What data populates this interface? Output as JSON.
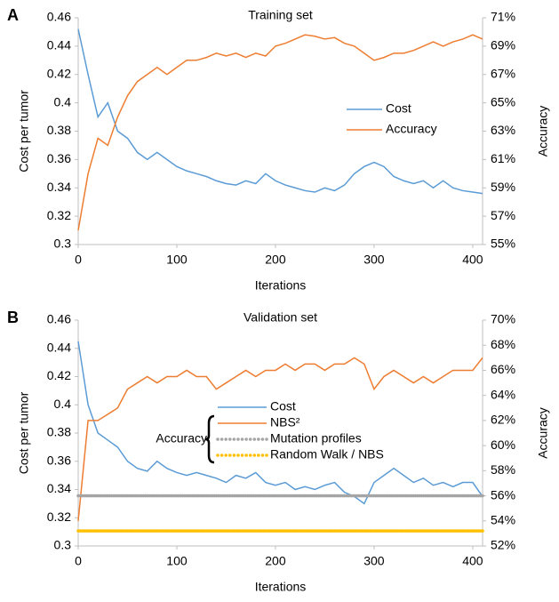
{
  "chart_data": [
    {
      "type": "line",
      "panel_label": "A",
      "title": "Training set",
      "xlabel": "Iterations",
      "ylabel": "Cost per tumor",
      "y2label": "Accuracy",
      "x": [
        0,
        10,
        20,
        30,
        40,
        50,
        60,
        70,
        80,
        90,
        100,
        110,
        120,
        130,
        140,
        150,
        160,
        170,
        180,
        190,
        200,
        210,
        220,
        230,
        240,
        250,
        260,
        270,
        280,
        290,
        300,
        310,
        320,
        330,
        340,
        350,
        360,
        370,
        380,
        390,
        400,
        410
      ],
      "xlim": [
        0,
        410
      ],
      "xticks": [
        0,
        100,
        200,
        300,
        400
      ],
      "ylim": [
        0.3,
        0.46
      ],
      "yticks": [
        0.3,
        0.32,
        0.34,
        0.36,
        0.38,
        0.4,
        0.42,
        0.44,
        0.46
      ],
      "y2lim": [
        55,
        71
      ],
      "y2ticks": [
        {
          "value": 55,
          "label": "55%"
        },
        {
          "value": 57,
          "label": "57%"
        },
        {
          "value": 59,
          "label": "59%"
        },
        {
          "value": 61,
          "label": "61%"
        },
        {
          "value": 63,
          "label": "63%"
        },
        {
          "value": 65,
          "label": "65%"
        },
        {
          "value": 67,
          "label": "67%"
        },
        {
          "value": 69,
          "label": "69%"
        },
        {
          "value": 71,
          "label": "71%"
        }
      ],
      "series": [
        {
          "name": "Cost",
          "color": "#5b9bd5",
          "axis": "y",
          "style": "line",
          "values": [
            0.452,
            0.42,
            0.39,
            0.4,
            0.38,
            0.375,
            0.365,
            0.36,
            0.365,
            0.36,
            0.355,
            0.352,
            0.35,
            0.348,
            0.345,
            0.343,
            0.342,
            0.345,
            0.343,
            0.35,
            0.345,
            0.342,
            0.34,
            0.338,
            0.337,
            0.34,
            0.338,
            0.342,
            0.35,
            0.355,
            0.358,
            0.355,
            0.348,
            0.345,
            0.343,
            0.345,
            0.34,
            0.345,
            0.34,
            0.338,
            0.337,
            0.336
          ]
        },
        {
          "name": "Accuracy",
          "color": "#ed7d31",
          "axis": "y2",
          "style": "line",
          "values": [
            56,
            60,
            62.5,
            62,
            64,
            65.5,
            66.5,
            67,
            67.5,
            67,
            67.5,
            68,
            68,
            68.2,
            68.5,
            68.3,
            68.5,
            68.2,
            68.5,
            68.3,
            69,
            69.2,
            69.5,
            69.8,
            69.7,
            69.5,
            69.6,
            69.2,
            69,
            68.5,
            68,
            68.2,
            68.5,
            68.5,
            68.7,
            69,
            69.3,
            69,
            69.3,
            69.5,
            69.8,
            69.5
          ]
        }
      ]
    },
    {
      "type": "line",
      "panel_label": "B",
      "title": "Validation set",
      "xlabel": "Iterations",
      "ylabel": "Cost per tumor",
      "y2label": "Accuracy",
      "annotation": "Accuracy",
      "x": [
        0,
        10,
        20,
        30,
        40,
        50,
        60,
        70,
        80,
        90,
        100,
        110,
        120,
        130,
        140,
        150,
        160,
        170,
        180,
        190,
        200,
        210,
        220,
        230,
        240,
        250,
        260,
        270,
        280,
        290,
        300,
        310,
        320,
        330,
        340,
        350,
        360,
        370,
        380,
        390,
        400,
        410
      ],
      "xlim": [
        0,
        410
      ],
      "xticks": [
        0,
        100,
        200,
        300,
        400
      ],
      "ylim": [
        0.3,
        0.46
      ],
      "yticks": [
        0.3,
        0.32,
        0.34,
        0.36,
        0.38,
        0.4,
        0.42,
        0.44,
        0.46
      ],
      "y2lim": [
        52,
        70
      ],
      "y2ticks": [
        {
          "value": 52,
          "label": "52%"
        },
        {
          "value": 54,
          "label": "54%"
        },
        {
          "value": 56,
          "label": "56%"
        },
        {
          "value": 58,
          "label": "58%"
        },
        {
          "value": 60,
          "label": "60%"
        },
        {
          "value": 62,
          "label": "62%"
        },
        {
          "value": 64,
          "label": "64%"
        },
        {
          "value": 66,
          "label": "66%"
        },
        {
          "value": 68,
          "label": "68%"
        },
        {
          "value": 70,
          "label": "70%"
        }
      ],
      "series": [
        {
          "name": "Cost",
          "color": "#5b9bd5",
          "axis": "y",
          "style": "line",
          "values": [
            0.445,
            0.4,
            0.38,
            0.375,
            0.37,
            0.36,
            0.355,
            0.353,
            0.36,
            0.355,
            0.352,
            0.35,
            0.352,
            0.35,
            0.348,
            0.345,
            0.35,
            0.348,
            0.352,
            0.345,
            0.343,
            0.345,
            0.34,
            0.342,
            0.34,
            0.343,
            0.345,
            0.338,
            0.335,
            0.33,
            0.345,
            0.35,
            0.355,
            0.35,
            0.345,
            0.348,
            0.343,
            0.345,
            0.342,
            0.345,
            0.345,
            0.335
          ]
        },
        {
          "name": "NBS²",
          "color": "#ed7d31",
          "axis": "y2",
          "style": "line",
          "values": [
            54,
            62,
            62,
            62.5,
            63,
            64.5,
            65,
            65.5,
            65,
            65.5,
            65.5,
            66,
            65.5,
            65.5,
            64.5,
            65,
            65.5,
            66,
            65.5,
            66,
            66,
            66.5,
            66,
            66.5,
            66.5,
            66,
            66.5,
            66.5,
            67,
            66.5,
            64.5,
            65.5,
            66,
            65.5,
            65,
            65.5,
            65,
            65.5,
            66,
            66,
            66,
            67
          ]
        },
        {
          "name": "Mutation profiles",
          "color": "#a5a5a5",
          "axis": "y2",
          "style": "dotted",
          "values": [
            56,
            56,
            56,
            56,
            56,
            56,
            56,
            56,
            56,
            56,
            56,
            56,
            56,
            56,
            56,
            56,
            56,
            56,
            56,
            56,
            56,
            56,
            56,
            56,
            56,
            56,
            56,
            56,
            56,
            56,
            56,
            56,
            56,
            56,
            56,
            56,
            56,
            56,
            56,
            56,
            56,
            56
          ]
        },
        {
          "name": "Random Walk / NBS",
          "color": "#ffc000",
          "axis": "y2",
          "style": "dotted",
          "values": [
            53.2,
            53.2,
            53.2,
            53.2,
            53.2,
            53.2,
            53.2,
            53.2,
            53.2,
            53.2,
            53.2,
            53.2,
            53.2,
            53.2,
            53.2,
            53.2,
            53.2,
            53.2,
            53.2,
            53.2,
            53.2,
            53.2,
            53.2,
            53.2,
            53.2,
            53.2,
            53.2,
            53.2,
            53.2,
            53.2,
            53.2,
            53.2,
            53.2,
            53.2,
            53.2,
            53.2,
            53.2,
            53.2,
            53.2,
            53.2,
            53.2,
            53.2
          ]
        }
      ]
    }
  ]
}
